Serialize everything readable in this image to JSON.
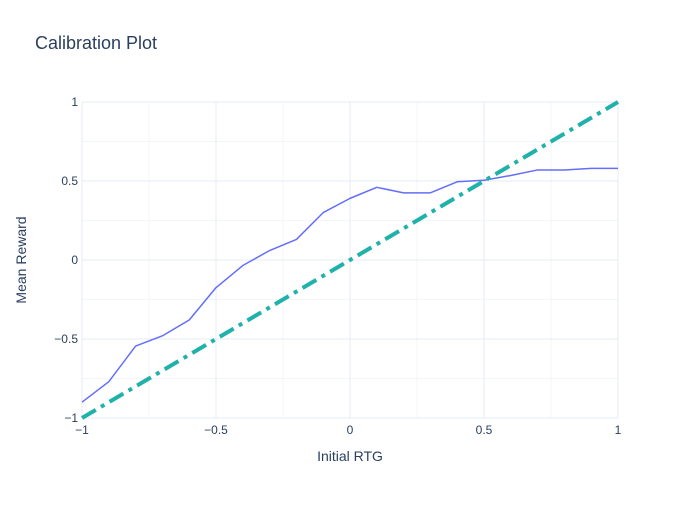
{
  "chart_data": {
    "type": "line",
    "title": "Calibration Plot",
    "xlabel": "Initial RTG",
    "ylabel": "Mean Reward",
    "xlim": [
      -1,
      1
    ],
    "ylim": [
      -1,
      1
    ],
    "xticks": [
      -1,
      -0.5,
      0,
      0.5,
      1
    ],
    "yticks": [
      -1,
      -0.5,
      0,
      0.5,
      1
    ],
    "xtick_labels": [
      "−1",
      "−0.5",
      "0",
      "0.5",
      "1"
    ],
    "ytick_labels": [
      "−1",
      "−0.5",
      "0",
      "0.5",
      "1"
    ],
    "grid": true,
    "legend": "none",
    "series": [
      {
        "color": "#636efa",
        "style": "solid",
        "x": [
          -1.0,
          -0.9,
          -0.8,
          -0.7,
          -0.6,
          -0.5,
          -0.4,
          -0.3,
          -0.2,
          -0.1,
          0.0,
          0.1,
          0.2,
          0.3,
          0.4,
          0.5,
          0.6,
          0.7,
          0.8,
          0.9,
          1.0
        ],
        "y": [
          -0.9,
          -0.77,
          -0.545,
          -0.48,
          -0.38,
          -0.175,
          -0.035,
          0.06,
          0.13,
          0.3,
          0.39,
          0.46,
          0.425,
          0.425,
          0.495,
          0.505,
          0.535,
          0.57,
          0.57,
          0.58,
          0.58
        ]
      },
      {
        "color": "#20b2aa",
        "style": "dashdot",
        "x": [
          -1,
          1
        ],
        "y": [
          -1,
          1
        ]
      }
    ]
  }
}
